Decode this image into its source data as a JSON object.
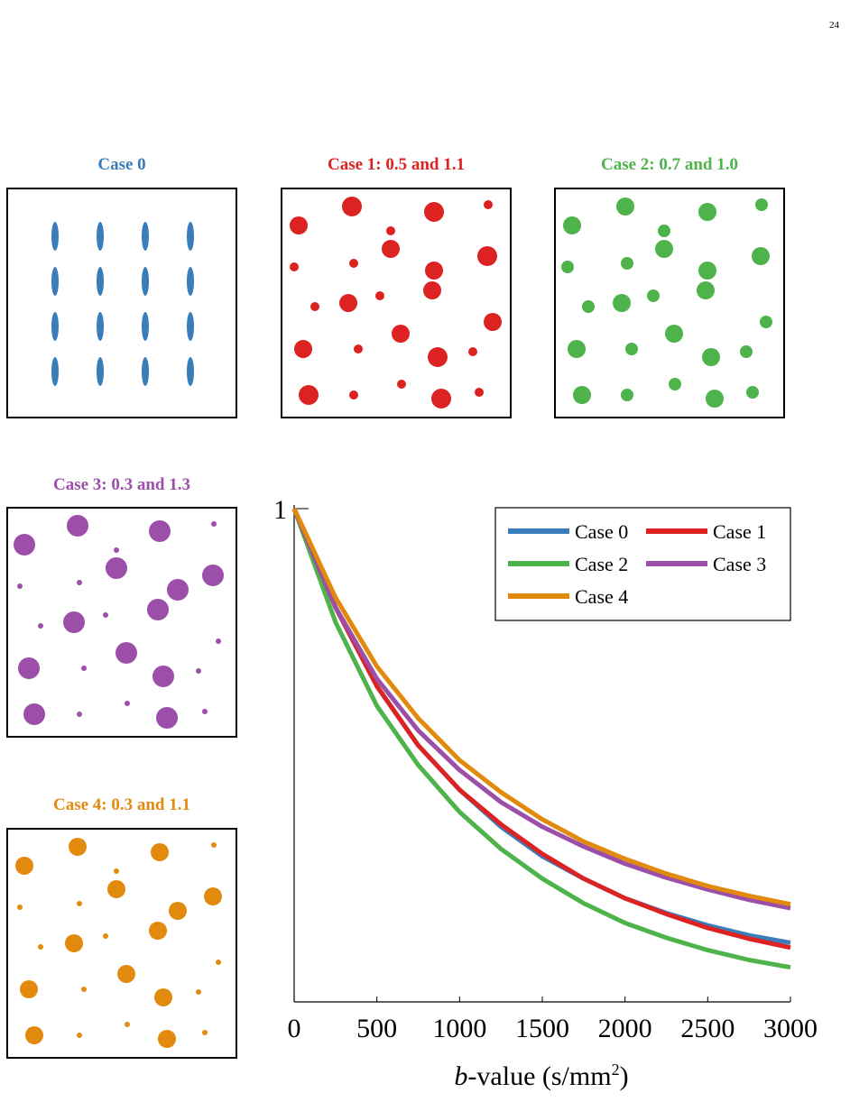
{
  "page_number": "24",
  "cases": [
    {
      "title": "Case 0",
      "color": "#3a7dbb",
      "shape": "ellipses",
      "particles": [
        [
          52,
          52,
          4,
          16
        ],
        [
          102,
          52,
          4,
          16
        ],
        [
          152,
          52,
          4,
          16
        ],
        [
          202,
          52,
          4,
          16
        ],
        [
          52,
          102,
          4,
          16
        ],
        [
          102,
          102,
          4,
          16
        ],
        [
          152,
          102,
          4,
          16
        ],
        [
          202,
          102,
          4,
          16
        ],
        [
          52,
          152,
          4,
          16
        ],
        [
          102,
          152,
          4,
          16
        ],
        [
          152,
          152,
          4,
          16
        ],
        [
          202,
          152,
          4,
          16
        ],
        [
          52,
          202,
          4,
          16
        ],
        [
          102,
          202,
          4,
          16
        ],
        [
          152,
          202,
          4,
          16
        ],
        [
          202,
          202,
          4,
          16
        ]
      ]
    },
    {
      "title": "Case 1: 0.5 and 1.1",
      "color": "#dd2222",
      "shape": "circles",
      "particles": [
        [
          18,
          40,
          10
        ],
        [
          77,
          19,
          11
        ],
        [
          168,
          25,
          11
        ],
        [
          228,
          17,
          5
        ],
        [
          13,
          86,
          5
        ],
        [
          79,
          82,
          5
        ],
        [
          120,
          46,
          5
        ],
        [
          120,
          66,
          10
        ],
        [
          168,
          90,
          10
        ],
        [
          227,
          74,
          11
        ],
        [
          36,
          130,
          5
        ],
        [
          73,
          126,
          10
        ],
        [
          108,
          118,
          5
        ],
        [
          166,
          112,
          10
        ],
        [
          233,
          147,
          10
        ],
        [
          23,
          177,
          10
        ],
        [
          84,
          177,
          5
        ],
        [
          131,
          160,
          10
        ],
        [
          172,
          186,
          11
        ],
        [
          211,
          180,
          5
        ],
        [
          29,
          228,
          11
        ],
        [
          79,
          228,
          5
        ],
        [
          132,
          216,
          5
        ],
        [
          176,
          232,
          11
        ],
        [
          218,
          225,
          5
        ]
      ]
    },
    {
      "title": "Case 2: 0.7 and 1.0",
      "color": "#4db34a",
      "shape": "circles",
      "particles": [
        [
          18,
          40,
          10
        ],
        [
          77,
          19,
          10
        ],
        [
          168,
          25,
          10
        ],
        [
          228,
          17,
          7
        ],
        [
          13,
          86,
          7
        ],
        [
          79,
          82,
          7
        ],
        [
          120,
          46,
          7
        ],
        [
          120,
          66,
          10
        ],
        [
          168,
          90,
          10
        ],
        [
          227,
          74,
          10
        ],
        [
          36,
          130,
          7
        ],
        [
          73,
          126,
          10
        ],
        [
          108,
          118,
          7
        ],
        [
          166,
          112,
          10
        ],
        [
          233,
          147,
          7
        ],
        [
          23,
          177,
          10
        ],
        [
          84,
          177,
          7
        ],
        [
          131,
          160,
          10
        ],
        [
          172,
          186,
          10
        ],
        [
          211,
          180,
          7
        ],
        [
          29,
          228,
          10
        ],
        [
          79,
          228,
          7
        ],
        [
          132,
          216,
          7
        ],
        [
          176,
          232,
          10
        ],
        [
          218,
          225,
          7
        ]
      ]
    },
    {
      "title": "Case 3: 0.3 and 1.3",
      "color": "#9b4fa8",
      "shape": "circles",
      "particles": [
        [
          18,
          40,
          12
        ],
        [
          77,
          19,
          12
        ],
        [
          168,
          25,
          12
        ],
        [
          228,
          17,
          3
        ],
        [
          13,
          86,
          3
        ],
        [
          79,
          82,
          3
        ],
        [
          120,
          46,
          3
        ],
        [
          120,
          66,
          12
        ],
        [
          188,
          90,
          12
        ],
        [
          227,
          74,
          12
        ],
        [
          36,
          130,
          3
        ],
        [
          73,
          126,
          12
        ],
        [
          108,
          118,
          3
        ],
        [
          166,
          112,
          12
        ],
        [
          233,
          147,
          3
        ],
        [
          23,
          177,
          12
        ],
        [
          84,
          177,
          3
        ],
        [
          131,
          160,
          12
        ],
        [
          172,
          186,
          12
        ],
        [
          211,
          180,
          3
        ],
        [
          29,
          228,
          12
        ],
        [
          79,
          228,
          3
        ],
        [
          132,
          216,
          3
        ],
        [
          176,
          232,
          12
        ],
        [
          218,
          225,
          3
        ]
      ]
    },
    {
      "title": "Case 4: 0.3 and 1.1",
      "color": "#e28a0e",
      "shape": "circles",
      "particles": [
        [
          18,
          40,
          10
        ],
        [
          77,
          19,
          10
        ],
        [
          168,
          25,
          10
        ],
        [
          228,
          17,
          3
        ],
        [
          13,
          86,
          3
        ],
        [
          79,
          82,
          3
        ],
        [
          120,
          46,
          3
        ],
        [
          120,
          66,
          10
        ],
        [
          188,
          90,
          10
        ],
        [
          227,
          74,
          10
        ],
        [
          36,
          130,
          3
        ],
        [
          73,
          126,
          10
        ],
        [
          108,
          118,
          3
        ],
        [
          166,
          112,
          10
        ],
        [
          233,
          147,
          3
        ],
        [
          23,
          177,
          10
        ],
        [
          84,
          177,
          3
        ],
        [
          131,
          160,
          10
        ],
        [
          172,
          186,
          10
        ],
        [
          211,
          180,
          3
        ],
        [
          29,
          228,
          10
        ],
        [
          79,
          228,
          3
        ],
        [
          132,
          216,
          3
        ],
        [
          176,
          232,
          10
        ],
        [
          218,
          225,
          3
        ]
      ]
    }
  ],
  "chart_data": {
    "type": "line",
    "xlabel": "b-value (s/mm2)",
    "ylabel": "",
    "xlim": [
      0,
      3000
    ],
    "ylim": [
      0,
      1
    ],
    "xticks": [
      "0",
      "500",
      "1000",
      "1500",
      "2000",
      "2500",
      "3000"
    ],
    "ytick_labels": [
      "1"
    ],
    "grid": false,
    "legend_position": "top-right",
    "x": [
      0,
      250,
      500,
      750,
      1000,
      1250,
      1500,
      1750,
      2000,
      2250,
      2500,
      2750,
      3000
    ],
    "series": [
      {
        "name": "Case 0",
        "color": "#3a7dbb",
        "values": [
          1.0,
          0.8,
          0.64,
          0.52,
          0.43,
          0.355,
          0.295,
          0.25,
          0.21,
          0.18,
          0.155,
          0.135,
          0.12
        ]
      },
      {
        "name": "Case 1",
        "color": "#dd2222",
        "values": [
          1.0,
          0.8,
          0.64,
          0.52,
          0.43,
          0.36,
          0.3,
          0.25,
          0.21,
          0.178,
          0.15,
          0.128,
          0.11
        ]
      },
      {
        "name": "Case 2",
        "color": "#4db34a",
        "values": [
          1.0,
          0.77,
          0.6,
          0.48,
          0.385,
          0.31,
          0.25,
          0.2,
          0.16,
          0.13,
          0.105,
          0.085,
          0.07
        ]
      },
      {
        "name": "Case 3",
        "color": "#9b4fa8",
        "values": [
          1.0,
          0.8,
          0.655,
          0.55,
          0.47,
          0.405,
          0.355,
          0.315,
          0.28,
          0.252,
          0.228,
          0.207,
          0.19
        ]
      },
      {
        "name": "Case 4",
        "color": "#e28a0e",
        "values": [
          1.0,
          0.82,
          0.68,
          0.575,
          0.49,
          0.425,
          0.37,
          0.325,
          0.29,
          0.26,
          0.235,
          0.215,
          0.198
        ]
      }
    ]
  }
}
